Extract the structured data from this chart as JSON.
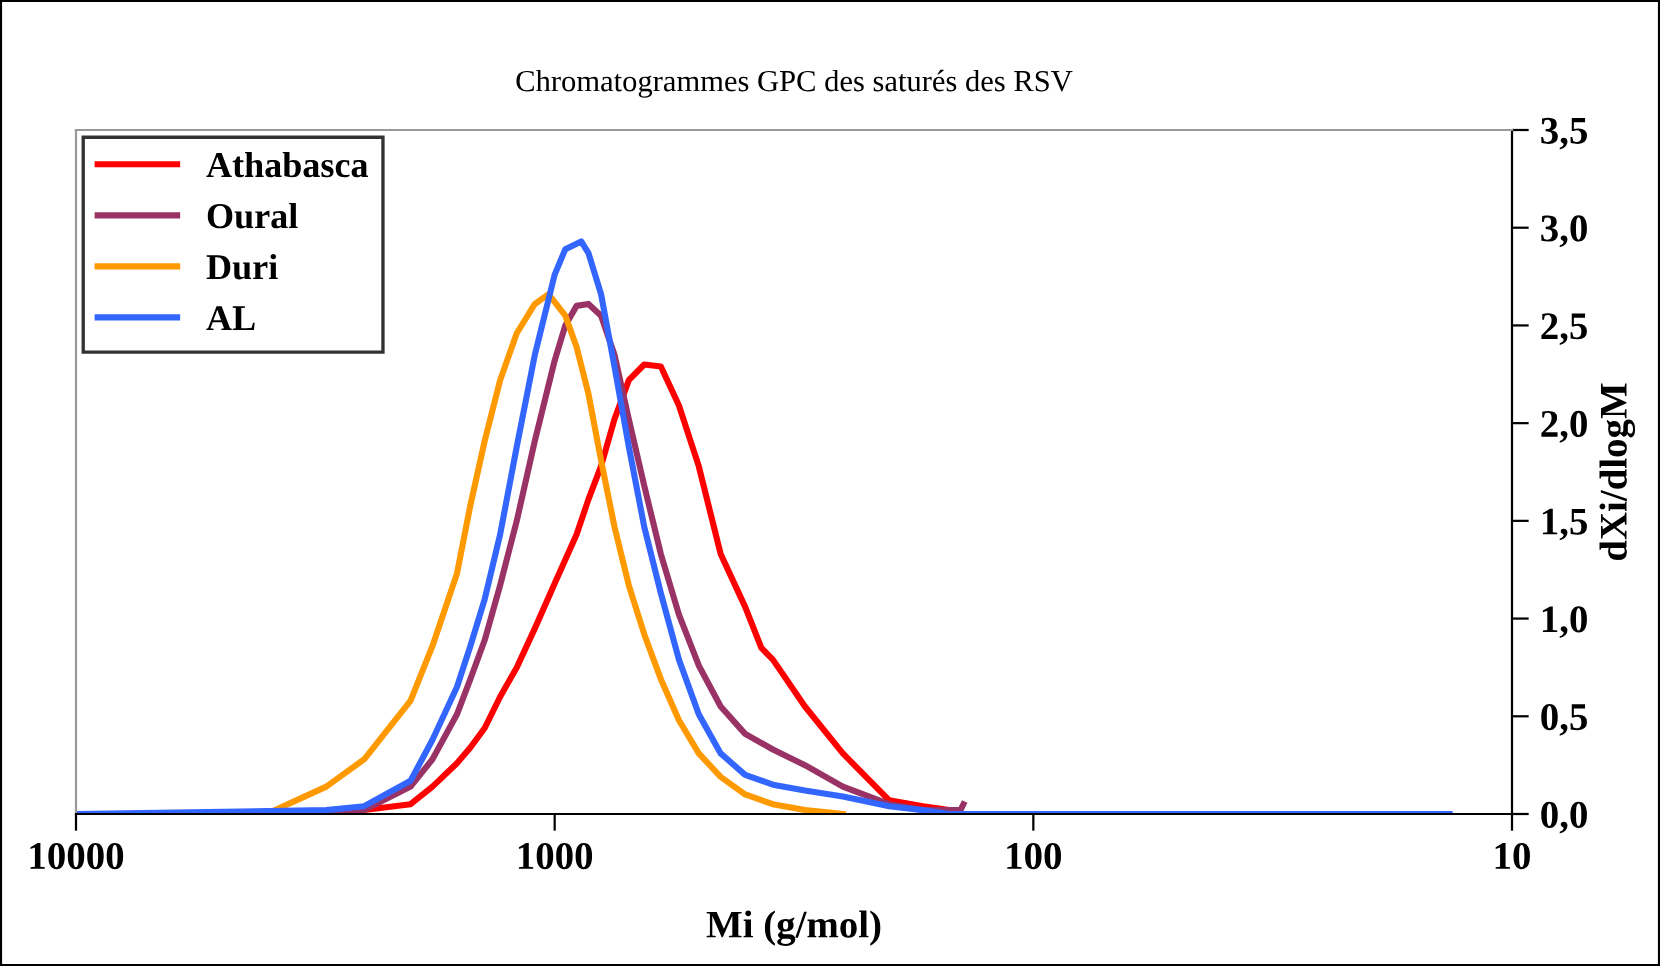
{
  "chart_data": {
    "type": "line",
    "title": "Chromatogrammes GPC des saturés des RSV",
    "xlabel": "Mi (g/mol)",
    "ylabel": "dXi/dlogM",
    "log": "x",
    "xlim": [
      10000,
      10
    ],
    "xticks": [
      10000,
      1000,
      100,
      10
    ],
    "ylim": [
      0,
      3.5
    ],
    "yticks": [
      {
        "value": 0,
        "label": "0,0"
      },
      {
        "value": 0.5,
        "label": "0,5"
      },
      {
        "value": 1,
        "label": "1,0"
      },
      {
        "value": 1.5,
        "label": "1,5"
      },
      {
        "value": 2,
        "label": "2,0"
      },
      {
        "value": 2.5,
        "label": "2,5"
      },
      {
        "value": 3,
        "label": "3,0"
      },
      {
        "value": 3.5,
        "label": "3,5"
      }
    ],
    "grid": false,
    "legend": "top left",
    "marker": "none",
    "line_style": "solid",
    "series": [
      {
        "name": "Athabasca",
        "color": "#ff0000",
        "x": [
          10000,
          3000,
          2500,
          2000,
          1800,
          1600,
          1500,
          1400,
          1300,
          1200,
          1100,
          1000,
          900,
          850,
          800,
          750,
          700,
          650,
          600,
          550,
          500,
          450,
          400,
          370,
          350,
          300,
          250,
          200,
          170,
          150,
          140
        ],
        "values": [
          0,
          0,
          0.02,
          0.05,
          0.14,
          0.26,
          0.34,
          0.44,
          0.6,
          0.75,
          0.95,
          1.18,
          1.43,
          1.61,
          1.78,
          2.02,
          2.22,
          2.3,
          2.29,
          2.09,
          1.78,
          1.33,
          1.06,
          0.85,
          0.79,
          0.55,
          0.31,
          0.07,
          0.04,
          0.02,
          0
        ]
      },
      {
        "name": "Oural",
        "color": "#993366",
        "x": [
          10000,
          3000,
          2500,
          2000,
          1800,
          1600,
          1500,
          1400,
          1300,
          1200,
          1100,
          1000,
          950,
          900,
          850,
          800,
          750,
          700,
          650,
          600,
          550,
          500,
          450,
          400,
          350,
          300,
          250,
          200,
          170,
          142,
          140
        ],
        "values": [
          0,
          0,
          0.02,
          0.14,
          0.28,
          0.51,
          0.69,
          0.89,
          1.17,
          1.5,
          1.91,
          2.32,
          2.5,
          2.6,
          2.61,
          2.55,
          2.35,
          2.02,
          1.68,
          1.33,
          1.02,
          0.76,
          0.55,
          0.41,
          0.33,
          0.25,
          0.14,
          0.05,
          0.02,
          0.02,
          0.05
        ]
      },
      {
        "name": "Duri",
        "color": "#ff9900",
        "x": [
          10000,
          4000,
          3000,
          2500,
          2000,
          1800,
          1600,
          1500,
          1400,
          1300,
          1200,
          1100,
          1030,
          950,
          900,
          850,
          800,
          750,
          700,
          650,
          600,
          550,
          500,
          450,
          400,
          350,
          300,
          250
        ],
        "values": [
          0,
          0,
          0.14,
          0.28,
          0.58,
          0.86,
          1.23,
          1.58,
          1.91,
          2.22,
          2.46,
          2.61,
          2.66,
          2.55,
          2.39,
          2.15,
          1.81,
          1.47,
          1.17,
          0.92,
          0.69,
          0.48,
          0.31,
          0.19,
          0.1,
          0.05,
          0.02,
          0
        ]
      },
      {
        "name": "AL",
        "color": "#3366ff",
        "x": [
          10000,
          3000,
          2500,
          2000,
          1800,
          1600,
          1500,
          1400,
          1300,
          1200,
          1100,
          1000,
          950,
          880,
          850,
          800,
          750,
          700,
          650,
          600,
          550,
          500,
          450,
          400,
          350,
          300,
          250,
          200,
          170,
          150,
          13.5
        ],
        "values": [
          0,
          0.02,
          0.04,
          0.17,
          0.38,
          0.65,
          0.86,
          1.1,
          1.43,
          1.88,
          2.35,
          2.76,
          2.89,
          2.93,
          2.87,
          2.66,
          2.29,
          1.88,
          1.47,
          1.13,
          0.79,
          0.51,
          0.31,
          0.2,
          0.15,
          0.12,
          0.09,
          0.04,
          0.02,
          0,
          0
        ]
      }
    ]
  }
}
